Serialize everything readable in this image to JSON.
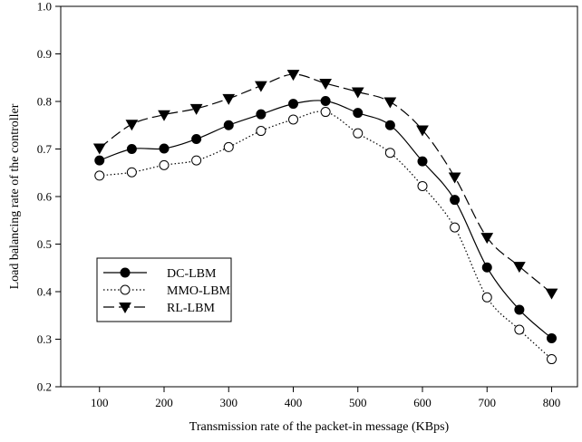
{
  "chart_data": {
    "type": "line",
    "title": "",
    "xlabel": "Transmission rate of the packet-in message (KBps)",
    "ylabel": "Load balancing rate of the controller",
    "xlim": [
      40,
      840
    ],
    "ylim": [
      0.2,
      1.0
    ],
    "xticks": [
      100,
      200,
      300,
      400,
      500,
      600,
      700,
      800
    ],
    "yticks": [
      0.2,
      0.3,
      0.4,
      0.5,
      0.6,
      0.7,
      0.8,
      0.9,
      1.0
    ],
    "x": [
      100,
      150,
      200,
      250,
      300,
      350,
      400,
      450,
      500,
      550,
      600,
      650,
      700,
      750,
      800
    ],
    "grid": false,
    "legend_position": "lower-left",
    "series": [
      {
        "name": "DC-LBM",
        "line_style": "solid",
        "marker": "filled-circle",
        "color": "#000000",
        "values": [
          0.676,
          0.7,
          0.701,
          0.721,
          0.75,
          0.773,
          0.795,
          0.801,
          0.776,
          0.75,
          0.674,
          0.593,
          0.451,
          0.362,
          0.302
        ]
      },
      {
        "name": "MMO-LBM",
        "line_style": "dotted",
        "marker": "open-circle",
        "color": "#000000",
        "values": [
          0.644,
          0.651,
          0.666,
          0.676,
          0.704,
          0.738,
          0.762,
          0.778,
          0.733,
          0.692,
          0.622,
          0.535,
          0.388,
          0.32,
          0.258
        ]
      },
      {
        "name": "RL-LBM",
        "line_style": "dashed",
        "marker": "filled-triangle-down",
        "color": "#000000",
        "values": [
          0.702,
          0.752,
          0.772,
          0.785,
          0.806,
          0.833,
          0.857,
          0.838,
          0.82,
          0.799,
          0.74,
          0.641,
          0.514,
          0.453,
          0.397
        ]
      }
    ]
  }
}
